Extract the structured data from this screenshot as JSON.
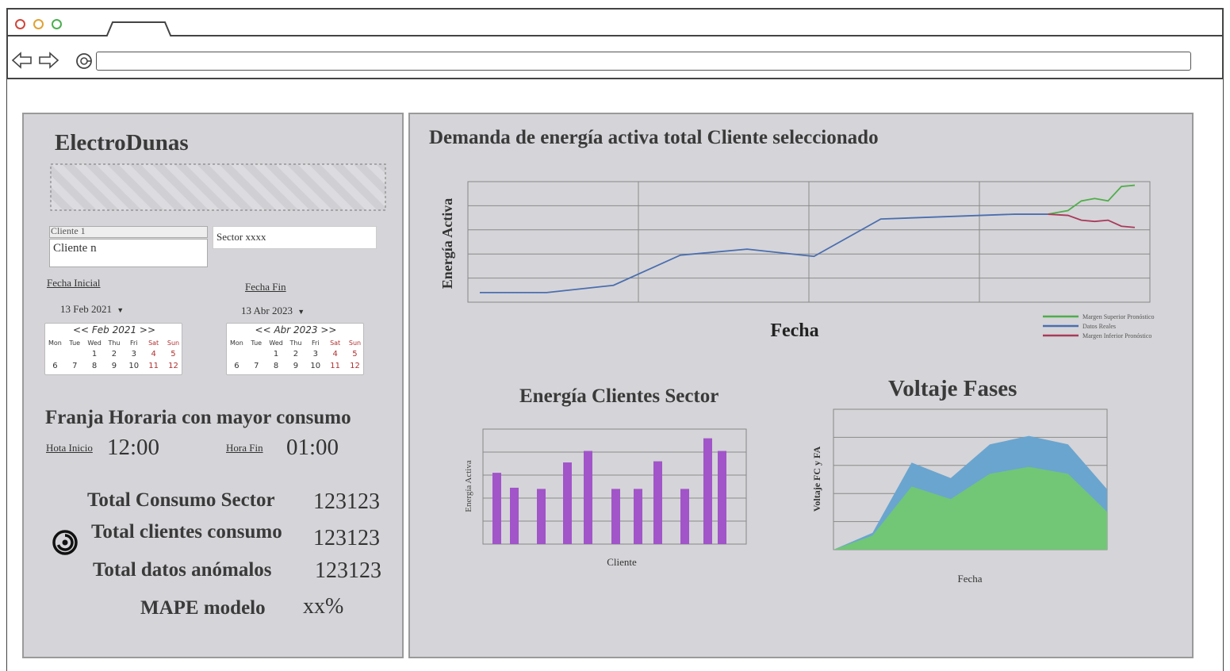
{
  "sidebar": {
    "brand": "ElectroDunas",
    "client_select": "Cliente 1",
    "client_option": "Cliente n",
    "sector_field": "Sector xxxx",
    "start_label": "Fecha Inicial",
    "end_label": "Fecha Fin",
    "start_date": "13 Feb 2021",
    "end_date": "13 Abr 2023",
    "calendar_start": {
      "header": "<< Feb 2021 >>",
      "days": [
        "Mon",
        "Tue",
        "Wed",
        "Thu",
        "Fri",
        "Sat",
        "Sun"
      ],
      "row1": [
        "",
        "",
        "",
        "1",
        "2",
        "3",
        "4",
        "5"
      ],
      "row2": [
        "6",
        "7",
        "8",
        "9",
        "10",
        "11",
        "12"
      ]
    },
    "calendar_end": {
      "header": "<< Abr 2023 >>",
      "days": [
        "Mon",
        "Tue",
        "Wed",
        "Thu",
        "Fri",
        "Sat",
        "Sun"
      ],
      "row2": [
        "6",
        "7",
        "8",
        "9",
        "10",
        "11",
        "12"
      ]
    },
    "peak_title": "Franja Horaria con mayor consumo",
    "hour_start_label": "Hota Inicio",
    "hour_start": "12:00",
    "hour_end_label": "Hora Fin",
    "hour_end": "01:00",
    "stats": {
      "sector_label": "Total Consumo Sector",
      "sector_value": "123123",
      "clients_label": "Total clientes consumo",
      "clients_value": "123123",
      "anomalies_label": "Total datos anómalos",
      "anomalies_value": "123123",
      "mape_label": "MAPE modelo",
      "mape_value": "xx%"
    },
    "spinner_icon": "loading-spiral-icon"
  },
  "colors": {
    "panel": "#d5d4d8",
    "real": "#4a6eb0",
    "upper": "#4fae4a",
    "lower": "#a83a5a",
    "bars": "#a155c9",
    "area_top": "#6aa5cf",
    "area_bottom": "#71c776"
  },
  "chart_data": [
    {
      "type": "line",
      "title": "Demanda de energía activa total Cliente seleccionado",
      "xlabel": "Fecha",
      "ylabel": "Energía Activa",
      "ylim": [
        0,
        5
      ],
      "legend_placement": "bottom-right",
      "legend": [
        "Margen Superior Pronóstico",
        "Datos Reales",
        "Margen Inferior Pronóstico"
      ],
      "series": [
        {
          "name": "Datos Reales",
          "x": [
            0,
            1,
            2,
            3,
            4,
            5,
            6,
            7,
            8,
            8.5
          ],
          "values": [
            0.4,
            0.4,
            0.7,
            1.95,
            2.2,
            1.9,
            3.45,
            3.55,
            3.65,
            3.65
          ]
        },
        {
          "name": "Margen Superior Pronóstico",
          "x": [
            8.5,
            8.8,
            9,
            9.2,
            9.4,
            9.6,
            9.8
          ],
          "values": [
            3.65,
            3.8,
            4.2,
            4.3,
            4.2,
            4.8,
            4.85
          ]
        },
        {
          "name": "Margen Inferior Pronóstico",
          "x": [
            8.5,
            8.8,
            9,
            9.2,
            9.4,
            9.6,
            9.8
          ],
          "values": [
            3.65,
            3.6,
            3.4,
            3.35,
            3.4,
            3.15,
            3.1
          ]
        }
      ],
      "grid": true
    },
    {
      "type": "bar",
      "title": "Energía Clientes Sector",
      "xlabel": "Cliente",
      "ylabel": "Energía Activa",
      "ylim": [
        0,
        5
      ],
      "values": [
        3.1,
        2.45,
        2.4,
        3.55,
        4.05,
        2.4,
        2.4,
        3.6,
        2.4,
        4.6,
        4.05
      ],
      "grid": true
    },
    {
      "type": "area",
      "title": "Voltaje Fases",
      "xlabel": "Fecha",
      "ylabel": "Voltaje FC y FA",
      "ylim": [
        0,
        5
      ],
      "x": [
        0,
        1,
        2,
        3,
        4,
        5,
        6,
        7
      ],
      "series": [
        {
          "values": [
            0,
            0.5,
            2.25,
            1.8,
            2.7,
            2.95,
            2.7,
            1.35
          ]
        },
        {
          "values": [
            0,
            0.1,
            0.85,
            0.75,
            1.05,
            1.1,
            1.05,
            0.8
          ]
        }
      ],
      "grid": true
    }
  ]
}
